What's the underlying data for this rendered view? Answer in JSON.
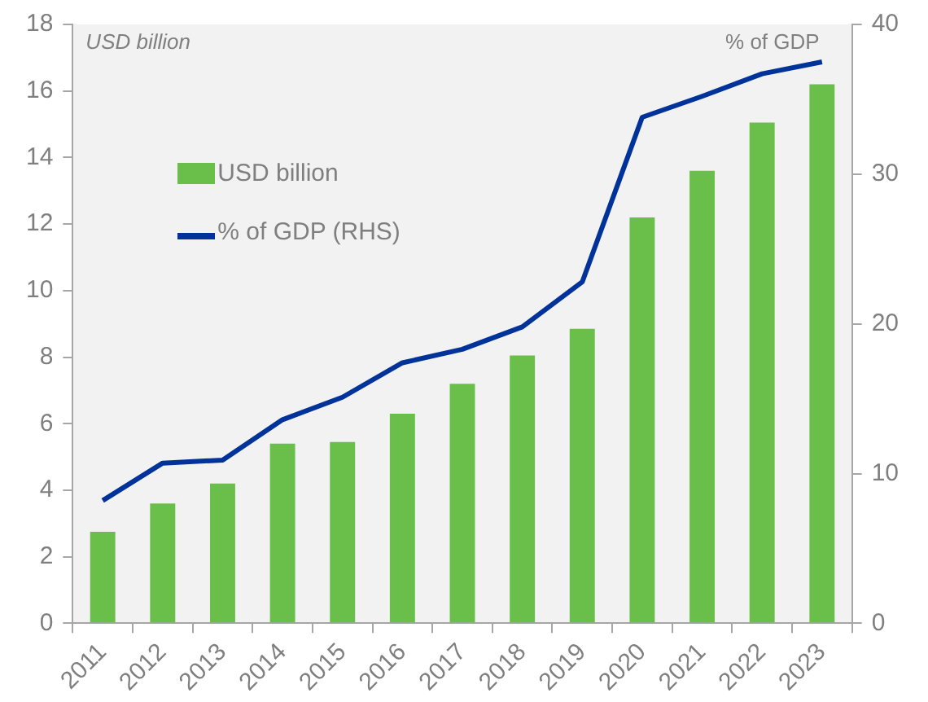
{
  "chart_data": {
    "type": "bar",
    "ylabel": "USD billion",
    "y2label": "% of GDP",
    "categories": [
      "2011",
      "2012",
      "2013",
      "2014",
      "2015",
      "2016",
      "2017",
      "2018",
      "2019",
      "2020",
      "2021",
      "2022",
      "2023"
    ],
    "series": [
      {
        "name": "USD billion",
        "color": "#6abf4b",
        "values": [
          2.75,
          3.6,
          4.2,
          5.4,
          5.45,
          6.3,
          7.2,
          8.05,
          8.85,
          12.2,
          13.6,
          15.05,
          16.2
        ]
      },
      {
        "name": "% of GDP (RHS)",
        "type": "line",
        "axis": "y2",
        "color": "#003399",
        "values": [
          8.2,
          10.7,
          10.9,
          13.6,
          15.1,
          17.4,
          18.3,
          19.8,
          22.8,
          33.8,
          35.2,
          36.7,
          37.5
        ]
      }
    ],
    "ylim": [
      0,
      18
    ],
    "yticks": [
      0,
      2,
      4,
      6,
      8,
      10,
      12,
      14,
      16,
      18
    ],
    "y2lim": [
      0,
      40
    ],
    "y2ticks": [
      0,
      10,
      20,
      30,
      40
    ],
    "grid": false,
    "legend": "top left",
    "marker": "none",
    "line_style": "solid"
  }
}
